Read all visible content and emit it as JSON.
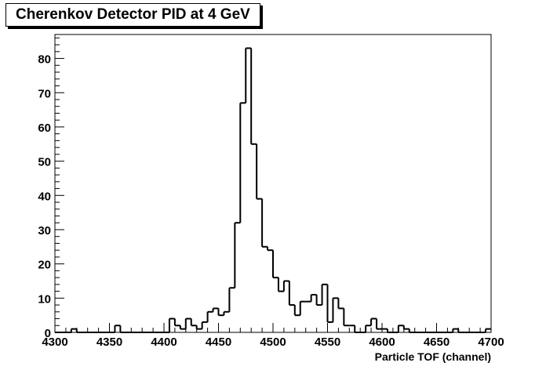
{
  "chart_data": {
    "type": "bar",
    "title": "Cherenkov Detector PID at 4 GeV",
    "xlabel": "Particle TOF (channel)",
    "ylabel": "",
    "xlim": [
      4300,
      4700
    ],
    "ylim": [
      0,
      87
    ],
    "bin_width": 5,
    "x_ticks": [
      "4300",
      "4350",
      "4400",
      "4450",
      "4500",
      "4550",
      "4600",
      "4650",
      "4700"
    ],
    "y_ticks": [
      "0",
      "10",
      "20",
      "30",
      "40",
      "50",
      "60",
      "70",
      "80"
    ],
    "bins_start": 4300,
    "values": [
      0,
      0,
      0,
      1,
      0,
      0,
      0,
      0,
      0,
      0,
      0,
      2,
      0,
      0,
      0,
      0,
      0,
      0,
      0,
      0,
      0,
      4,
      2,
      1,
      4,
      2,
      1,
      3,
      6,
      7,
      5,
      6,
      13,
      32,
      67,
      83,
      55,
      39,
      25,
      24,
      16,
      12,
      15,
      8,
      5,
      9,
      9,
      11,
      8,
      14,
      3,
      10,
      7,
      2,
      2,
      0,
      0,
      2,
      4,
      1,
      1,
      0,
      0,
      2,
      1,
      0,
      0,
      0,
      0,
      0,
      0,
      0,
      0,
      1,
      0,
      0,
      0,
      0,
      0,
      1
    ],
    "grid": false,
    "legend": "none"
  },
  "colors": {
    "line": "#000000",
    "background": "#ffffff"
  }
}
